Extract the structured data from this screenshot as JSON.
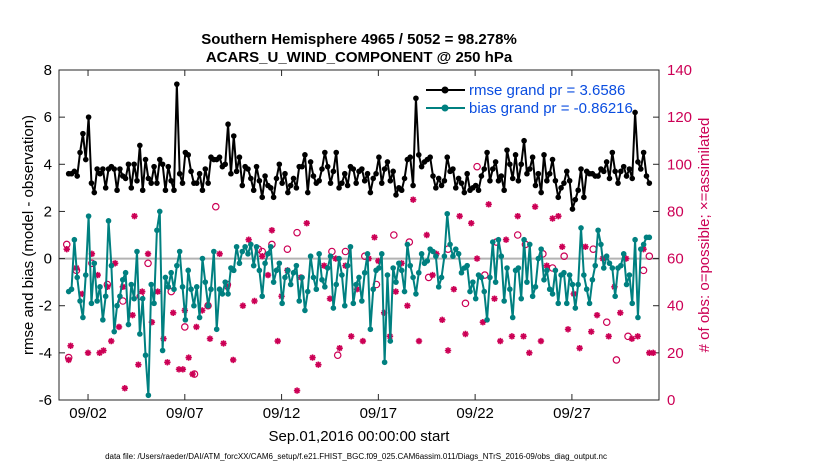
{
  "chart_data": {
    "type": "line",
    "title": "Southern Hemisphere 4965 / 5052 = 98.278%",
    "subtitle": "ACARS_U_WIND_COMPONENT @ 250 hPa",
    "xlabel": "Sep.01,2016 00:00:00 start",
    "ylabel_left": "rmse and bias (model - observation)",
    "ylabel_right": "# of obs: o=possible; ×=assimilated",
    "footer": "data file: /Users/raeder/DAI/ATM_forcXX/CAM6_setup/f.e21.FHIST_BGC.f09_025.CAM6assim.011/Diags_NTrS_2016-09/obs_diag_output.nc",
    "xlim": [
      0.5,
      31.5
    ],
    "ylim_left": [
      -6,
      8
    ],
    "ylim_right": [
      0,
      140
    ],
    "xticks": [
      2,
      7,
      12,
      17,
      22,
      27
    ],
    "xtick_labels": [
      "09/02",
      "09/07",
      "09/12",
      "09/17",
      "09/22",
      "09/27"
    ],
    "yticks_left": [
      -6,
      -4,
      -2,
      0,
      2,
      4,
      6,
      8
    ],
    "yticks_right": [
      0,
      20,
      40,
      60,
      80,
      100,
      120,
      140
    ],
    "legend_placement": "top-right",
    "colors": {
      "rmse": "#000000",
      "bias": "#008080",
      "obs": "#cc0055",
      "zero": "#b3b3b3"
    },
    "series": [
      {
        "name": "rmse grand pr = 3.6586",
        "color": "#000000",
        "axis": "left",
        "values": [
          3.6,
          3.6,
          3.7,
          3.5,
          4.5,
          5.3,
          4.2,
          6.0,
          3.2,
          2.8,
          3.8,
          3.6,
          3.8,
          3.0,
          3.8,
          3.9,
          3.8,
          2.9,
          3.8,
          3.5,
          3.4,
          4.0,
          3.0,
          4.0,
          3.3,
          4.8,
          2.9,
          4.2,
          3.4,
          3.2,
          3.9,
          3.2,
          4.2,
          4.0,
          2.9,
          3.9,
          3.3,
          2.9,
          7.4,
          3.6,
          3.2,
          4.5,
          4.4,
          3.7,
          3.2,
          3.2,
          3.6,
          2.9,
          3.8,
          3.2,
          4.3,
          4.2,
          4.2,
          4.3,
          3.9,
          4.0,
          5.7,
          3.6,
          5.2,
          3.7,
          4.3,
          3.1,
          3.9,
          3.8,
          3.4,
          2.9,
          3.9,
          3.3,
          2.6,
          3.5,
          3.1,
          3.0,
          2.6,
          3.4,
          4.0,
          3.2,
          3.6,
          2.8,
          3.1,
          3.4,
          3.0,
          3.9,
          3.9,
          4.4,
          2.8,
          4.1,
          3.5,
          3.2,
          3.3,
          3.8,
          4.5,
          3.9,
          3.2,
          3.7,
          4.5,
          3.0,
          3.2,
          3.6,
          3.1,
          3.9,
          3.8,
          3.2,
          3.7,
          3.8,
          3.3,
          3.6,
          2.8,
          3.4,
          3.6,
          4.3,
          3.2,
          3.8,
          4.1,
          3.3,
          3.7,
          2.7,
          3.0,
          2.9,
          3.4,
          4.2,
          4.3,
          3.1,
          6.8,
          4.4,
          3.9,
          4.1,
          4.2,
          4.3,
          3.5,
          3.0,
          3.4,
          3.1,
          3.3,
          4.3,
          3.7,
          3.8,
          3.0,
          3.4,
          3.2,
          2.8,
          3.6,
          2.9,
          3.0,
          3.1,
          2.9,
          3.5,
          3.8,
          4.5,
          3.3,
          3.8,
          4.1,
          3.3,
          3.5,
          2.9,
          4.6,
          4.0,
          3.4,
          4.4,
          3.3,
          4.0,
          5.0,
          3.6,
          3.8,
          4.3,
          3.1,
          3.6,
          2.8,
          4.4,
          3.3,
          3.6,
          4.2,
          3.3,
          2.6,
          3.0,
          3.2,
          3.7,
          3.3,
          2.1,
          2.5,
          2.9,
          3.8,
          2.6,
          3.7,
          3.6,
          3.6,
          3.5,
          3.5,
          3.8,
          3.7,
          4.1,
          3.4,
          4.5,
          3.7,
          3.2,
          3.7,
          3.9,
          3.5,
          3.8,
          3.4,
          6.2,
          4.1,
          3.8,
          4.5,
          3.5,
          3.2
        ]
      },
      {
        "name": "bias grand pr = -0.86216",
        "color": "#008080",
        "axis": "left",
        "values": [
          -1.4,
          -1.3,
          0.8,
          -0.8,
          -1.8,
          -2.5,
          -0.7,
          1.8,
          -1.9,
          -0.2,
          -1.8,
          -1.2,
          -2.6,
          -1.6,
          1.6,
          -0.3,
          -3.1,
          -2.0,
          -1.6,
          -0.9,
          -0.6,
          -2.8,
          -1.1,
          -1.7,
          0.3,
          -3.2,
          -1.7,
          -4.1,
          -5.8,
          -1.1,
          -1.9,
          1.2,
          2.0,
          -3.9,
          -0.8,
          -1.2,
          -0.6,
          -1.3,
          -0.3,
          0.3,
          -1.2,
          -2.6,
          -0.5,
          -1.3,
          -2.0,
          -1.2,
          -2.5,
          0.0,
          -1.0,
          -2.0,
          -1.3,
          0.3,
          -3.0,
          -1.3,
          -1.5,
          -1.0,
          -1.5,
          -0.4,
          -0.5,
          0.5,
          -0.2,
          0.3,
          0.5,
          0.2,
          0.6,
          -0.3,
          0.5,
          -0.5,
          -1.6,
          -0.2,
          0.2,
          0.5,
          -1.0,
          -0.5,
          -0.2,
          -1.9,
          -0.8,
          -0.5,
          -1.1,
          -0.6,
          -0.3,
          -1.8,
          -0.8,
          -2.2,
          -1.4,
          0.1,
          -0.8,
          -1.3,
          0.2,
          -0.9,
          -1.2,
          -0.4,
          0.1,
          -2.1,
          -1.1,
          0.0,
          -0.7,
          -2.0,
          -0.3,
          0.5,
          -1.9,
          -1.1,
          -0.8,
          -1.8,
          -0.6,
          0.2,
          -3.0,
          -1.3,
          -0.5,
          -0.4,
          0.2,
          -4.4,
          -0.7,
          -3.5,
          -0.4,
          -1.0,
          -0.2,
          -0.5,
          -1.4,
          0.6,
          -0.3,
          -0.8,
          -1.5,
          -0.6,
          0.2,
          -0.2,
          -0.1,
          0.4,
          0.3,
          0.1,
          -1.2,
          -0.8,
          0.1,
          1.9,
          0.6,
          0.1,
          0.4,
          0.2,
          -0.6,
          -0.4,
          -0.3,
          -1.4,
          -1.0,
          -1.7,
          -0.7,
          -0.8,
          -1.4,
          -2.6,
          -0.8,
          0.7,
          -1.0,
          0.8,
          0.1,
          -1.8,
          -0.4,
          -1.3,
          -2.5,
          -0.5,
          -0.4,
          -1.7,
          0.8,
          -1.0,
          0.6,
          -1.6,
          -1.2,
          0.0,
          0.4,
          -0.9,
          -0.5,
          -1.3,
          -1.5,
          -0.5,
          -1.9,
          -0.7,
          -0.6,
          -1.9,
          -0.7,
          -1.1,
          -2.1,
          -1.1,
          1.3,
          -0.7,
          -1.3,
          -1.9,
          -0.9,
          -0.3,
          1.2,
          0.6,
          -0.4,
          0.1,
          -0.2,
          -0.4,
          -1.6,
          -0.4,
          -0.3,
          0.2,
          -1.1,
          -0.7,
          -1.9,
          0.8,
          -2.5,
          0.4,
          0.6,
          0.9,
          0.9
        ]
      },
      {
        "name": "possible",
        "color": "#cc0055",
        "axis": "right",
        "marker": "circle",
        "points": [
          [
            0.9,
            66
          ],
          [
            1.0,
            18
          ],
          [
            1.4,
            55
          ],
          [
            2.2,
            58
          ],
          [
            3.0,
            49
          ],
          [
            3.8,
            42
          ],
          [
            4.7,
            44
          ],
          [
            5.1,
            58
          ],
          [
            6.3,
            46
          ],
          [
            7.0,
            31
          ],
          [
            7.5,
            11
          ],
          [
            8.2,
            40
          ],
          [
            8.6,
            82
          ],
          [
            9.2,
            49
          ],
          [
            10.8,
            64
          ],
          [
            11.0,
            63
          ],
          [
            11.5,
            66
          ],
          [
            12.3,
            64
          ],
          [
            12.8,
            71
          ],
          [
            14.6,
            63
          ],
          [
            14.9,
            19
          ],
          [
            15.3,
            63
          ],
          [
            16.3,
            61
          ],
          [
            16.9,
            49
          ],
          [
            17.8,
            70
          ],
          [
            18.6,
            67
          ],
          [
            19.6,
            52
          ],
          [
            20.6,
            64
          ],
          [
            21.5,
            41
          ],
          [
            22.1,
            99
          ],
          [
            22.5,
            53
          ],
          [
            23.1,
            67
          ],
          [
            24.2,
            70
          ],
          [
            24.6,
            66
          ],
          [
            25.5,
            62
          ],
          [
            26.0,
            56
          ],
          [
            26.6,
            61
          ],
          [
            28.1,
            64
          ],
          [
            28.8,
            33
          ],
          [
            29.3,
            17
          ],
          [
            29.9,
            27
          ],
          [
            30.7,
            55
          ],
          [
            31.0,
            61
          ]
        ]
      },
      {
        "name": "assimilated",
        "color": "#cc0055",
        "axis": "right",
        "marker": "star",
        "points": [
          [
            0.9,
            64
          ],
          [
            1.0,
            17
          ],
          [
            1.1,
            23
          ],
          [
            1.4,
            56
          ],
          [
            1.7,
            45
          ],
          [
            2.0,
            20
          ],
          [
            2.2,
            62
          ],
          [
            2.5,
            53
          ],
          [
            2.6,
            20
          ],
          [
            2.8,
            21
          ],
          [
            3.0,
            48
          ],
          [
            3.2,
            25
          ],
          [
            3.4,
            58
          ],
          [
            3.6,
            31
          ],
          [
            3.8,
            48
          ],
          [
            3.9,
            5
          ],
          [
            4.3,
            36
          ],
          [
            4.4,
            78
          ],
          [
            4.6,
            15
          ],
          [
            4.8,
            46
          ],
          [
            5.1,
            62
          ],
          [
            5.3,
            33
          ],
          [
            5.6,
            46
          ],
          [
            5.9,
            26
          ],
          [
            6.1,
            16
          ],
          [
            6.4,
            37
          ],
          [
            6.7,
            13
          ],
          [
            6.9,
            13
          ],
          [
            7.0,
            38
          ],
          [
            7.2,
            18
          ],
          [
            7.4,
            11
          ],
          [
            7.6,
            31
          ],
          [
            7.9,
            38
          ],
          [
            8.3,
            26
          ],
          [
            8.8,
            62
          ],
          [
            9.0,
            24
          ],
          [
            9.2,
            48
          ],
          [
            9.5,
            17
          ],
          [
            10.0,
            40
          ],
          [
            10.3,
            68
          ],
          [
            10.6,
            42
          ],
          [
            11.0,
            61
          ],
          [
            11.3,
            53
          ],
          [
            11.5,
            72
          ],
          [
            11.8,
            25
          ],
          [
            12.0,
            44
          ],
          [
            12.3,
            55
          ],
          [
            12.8,
            4
          ],
          [
            13.0,
            52
          ],
          [
            13.3,
            75
          ],
          [
            13.6,
            18
          ],
          [
            13.9,
            15
          ],
          [
            14.2,
            57
          ],
          [
            14.5,
            43
          ],
          [
            14.8,
            60
          ],
          [
            15.0,
            22
          ],
          [
            15.3,
            57
          ],
          [
            15.6,
            27
          ],
          [
            15.9,
            47
          ],
          [
            16.2,
            25
          ],
          [
            16.5,
            60
          ],
          [
            16.8,
            69
          ],
          [
            17.0,
            59
          ],
          [
            17.3,
            37
          ],
          [
            17.6,
            27
          ],
          [
            17.9,
            46
          ],
          [
            18.2,
            58
          ],
          [
            18.5,
            40
          ],
          [
            18.8,
            85
          ],
          [
            19.1,
            25
          ],
          [
            19.5,
            70
          ],
          [
            19.8,
            53
          ],
          [
            20.0,
            62
          ],
          [
            20.3,
            34
          ],
          [
            20.6,
            21
          ],
          [
            20.9,
            47
          ],
          [
            21.2,
            78
          ],
          [
            21.5,
            28
          ],
          [
            21.8,
            75
          ],
          [
            22.1,
            60
          ],
          [
            22.4,
            33
          ],
          [
            22.7,
            83
          ],
          [
            23.0,
            43
          ],
          [
            23.3,
            25
          ],
          [
            23.6,
            68
          ],
          [
            23.9,
            27
          ],
          [
            24.2,
            78
          ],
          [
            24.5,
            27
          ],
          [
            24.8,
            20
          ],
          [
            25.1,
            82
          ],
          [
            25.4,
            25
          ],
          [
            25.7,
            57
          ],
          [
            26.0,
            77
          ],
          [
            26.3,
            78
          ],
          [
            26.5,
            65
          ],
          [
            26.8,
            30
          ],
          [
            27.1,
            45
          ],
          [
            27.4,
            22
          ],
          [
            27.7,
            65
          ],
          [
            28.0,
            29
          ],
          [
            28.3,
            36
          ],
          [
            28.6,
            60
          ],
          [
            28.9,
            27
          ],
          [
            29.2,
            48
          ],
          [
            29.5,
            37
          ],
          [
            29.8,
            60
          ],
          [
            30.1,
            26
          ],
          [
            30.4,
            27
          ],
          [
            30.7,
            64
          ],
          [
            31.0,
            20
          ],
          [
            31.2,
            20
          ]
        ]
      }
    ]
  }
}
